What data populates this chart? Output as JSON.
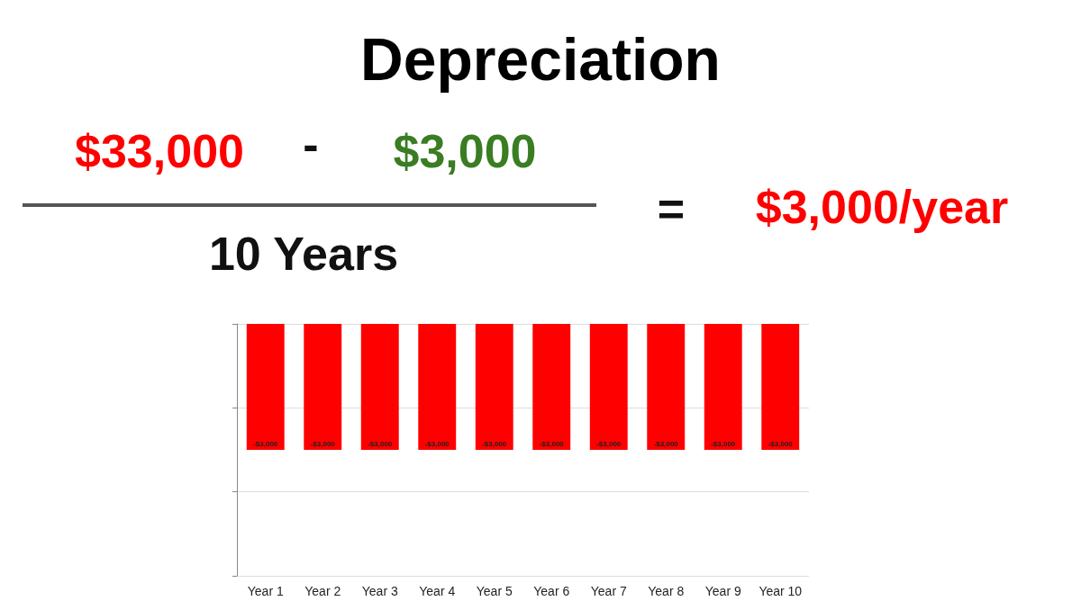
{
  "chart_data": {
    "type": "bar",
    "title": "Depreciation",
    "annotations": [
      "$33,000",
      "-",
      "$3,000",
      "10 Years",
      "=",
      "$3,000/year"
    ],
    "categories": [
      "Year 1",
      "Year 2",
      "Year 3",
      "Year 4",
      "Year 5",
      "Year 6",
      "Year 7",
      "Year 8",
      "Year 9",
      "Year 10"
    ],
    "values": [
      -3000,
      -3000,
      -3000,
      -3000,
      -3000,
      -3000,
      -3000,
      -3000,
      -3000,
      -3000
    ],
    "value_labels": [
      "-$3,000",
      "-$3,000",
      "-$3,000",
      "-$3,000",
      "-$3,000",
      "-$3,000",
      "-$3,000",
      "-$3,000",
      "-$3,000",
      "-$3,000"
    ],
    "color": "#ff0000",
    "ylim": [
      -6000,
      0
    ],
    "yticks": [
      {
        "value": -6000,
        "label": null
      },
      {
        "value": -4000,
        "label": null
      },
      {
        "value": -2000,
        "label": null
      },
      {
        "value": 0,
        "label": null
      }
    ],
    "grid": "y",
    "tick_labels": "x"
  }
}
